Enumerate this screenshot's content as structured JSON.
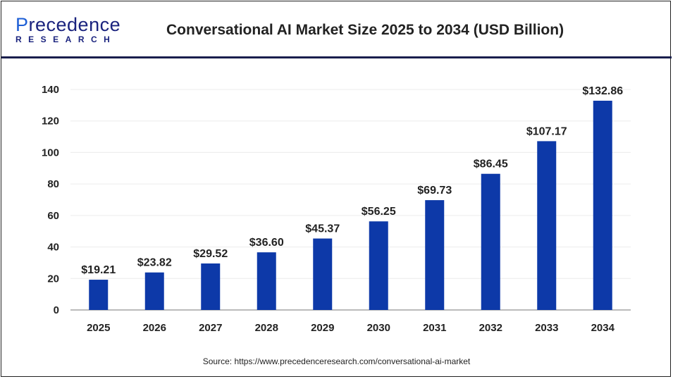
{
  "brand": {
    "name_top": "Precedence",
    "name_bottom": "RESEARCH"
  },
  "source": "Source: https://www.precedenceresearch.com/conversational-ai-market",
  "chart_data": {
    "type": "bar",
    "title": "Conversational AI Market Size 2025 to 2034 (USD Billion)",
    "categories": [
      "2025",
      "2026",
      "2027",
      "2028",
      "2029",
      "2030",
      "2031",
      "2032",
      "2033",
      "2034"
    ],
    "values": [
      19.21,
      23.82,
      29.52,
      36.6,
      45.37,
      56.25,
      69.73,
      86.45,
      107.17,
      132.86
    ],
    "data_labels": [
      "$19.21",
      "$23.82",
      "$29.52",
      "$36.60",
      "$45.37",
      "$56.25",
      "$69.73",
      "$86.45",
      "$107.17",
      "$132.86"
    ],
    "yticks": [
      "0",
      "20",
      "40",
      "60",
      "80",
      "100",
      "120",
      "140"
    ],
    "ylim": [
      0,
      140
    ],
    "grid": true,
    "bar_color": "#0d39a8",
    "xlabel": "",
    "ylabel": ""
  }
}
